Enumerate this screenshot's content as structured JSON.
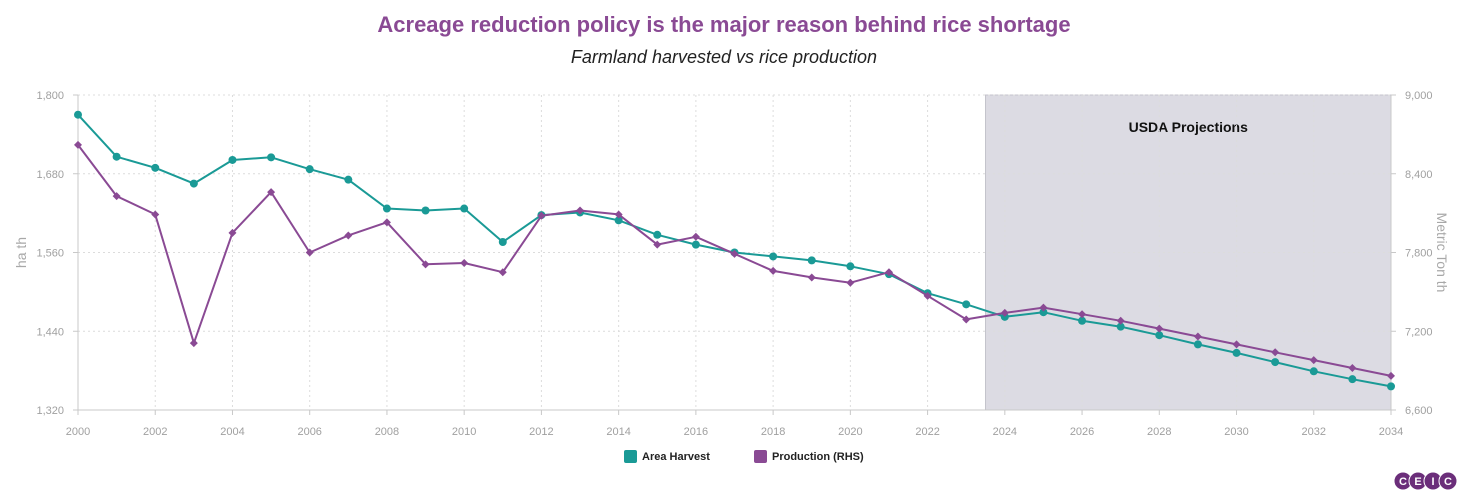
{
  "chart_data": {
    "type": "line",
    "title": "Acreage reduction policy is the major reason behind rice shortage",
    "subtitle": "Farmland harvested vs rice production",
    "ylabel": "ha th",
    "ylabel_right": "Metric Ton th",
    "ylim": [
      1320,
      1800
    ],
    "ylim_right": [
      6600,
      9000
    ],
    "yticks": [
      "1,320",
      "1,440",
      "1,560",
      "1,680",
      "1,800"
    ],
    "yticks_right": [
      "6,600",
      "7,200",
      "7,800",
      "8,400",
      "9,000"
    ],
    "xlim": [
      2000,
      2034
    ],
    "xticks": [
      "2000",
      "2002",
      "2004",
      "2006",
      "2008",
      "2010",
      "2012",
      "2014",
      "2016",
      "2018",
      "2020",
      "2022",
      "2024",
      "2026",
      "2028",
      "2030",
      "2032",
      "2034"
    ],
    "grid": true,
    "legend_position": "bottom-center",
    "annotation": {
      "label": "USDA Projections",
      "x_start": 2023.5,
      "x_end": 2034,
      "color": "#dcdbe3"
    },
    "x": [
      2000,
      2001,
      2002,
      2003,
      2004,
      2005,
      2006,
      2007,
      2008,
      2009,
      2010,
      2011,
      2012,
      2013,
      2014,
      2015,
      2016,
      2017,
      2018,
      2019,
      2020,
      2021,
      2022,
      2023,
      2024,
      2025,
      2026,
      2027,
      2028,
      2029,
      2030,
      2031,
      2032,
      2033,
      2034
    ],
    "series": [
      {
        "name": "Area Harvest",
        "axis": "left",
        "color": "#1a9a96",
        "marker": "circle",
        "values": [
          1770,
          1706,
          1689,
          1665,
          1701,
          1705,
          1687,
          1671,
          1627,
          1624,
          1627,
          1576,
          1617,
          1621,
          1609,
          1587,
          1572,
          1560,
          1554,
          1548,
          1539,
          1527,
          1498,
          1481,
          1462,
          1469,
          1456,
          1447,
          1434,
          1420,
          1407,
          1393,
          1379,
          1367,
          1356
        ]
      },
      {
        "name": "Production (RHS)",
        "axis": "right",
        "color": "#8a4a94",
        "marker": "diamond",
        "values": [
          8620,
          8230,
          8090,
          7110,
          7950,
          8260,
          7800,
          7930,
          8030,
          7710,
          7720,
          7650,
          8080,
          8120,
          8090,
          7860,
          7920,
          7790,
          7660,
          7610,
          7570,
          7650,
          7470,
          7290,
          7340,
          7380,
          7330,
          7280,
          7220,
          7160,
          7100,
          7040,
          6980,
          6920,
          6860
        ]
      }
    ]
  },
  "colors": {
    "title": "#8a4a94",
    "logo": "#6b2e7a"
  },
  "logo": {
    "letters": [
      "C",
      "E",
      "I",
      "C"
    ],
    "icon": "ceic-logo"
  }
}
